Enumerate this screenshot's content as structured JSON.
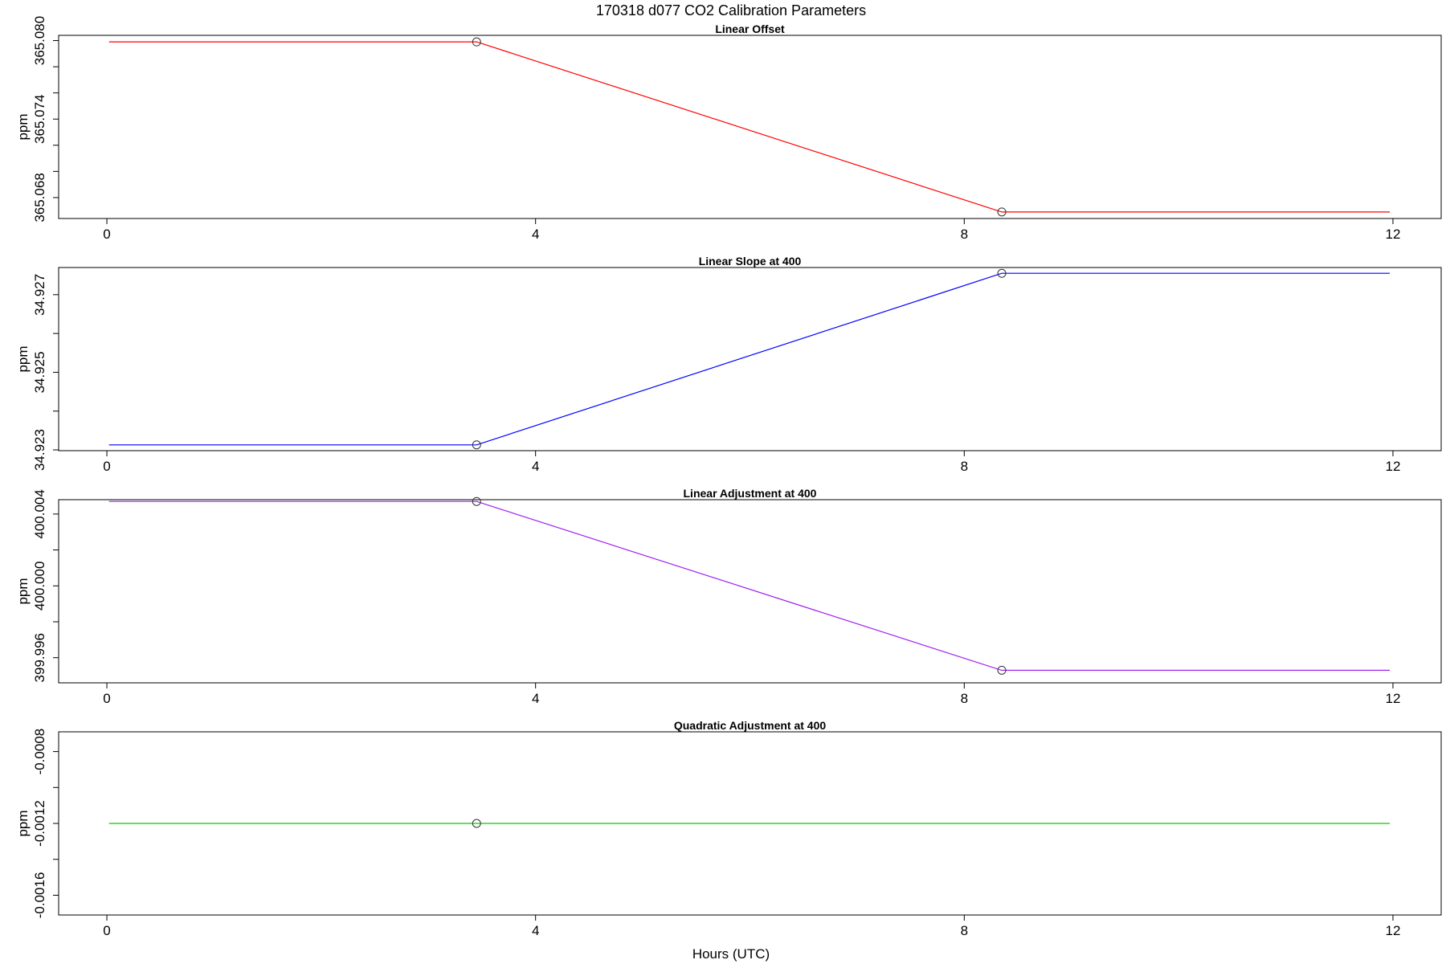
{
  "title": "170318   d077   CO2 Calibration Parameters",
  "xlabel": "Hours (UTC)",
  "chart_data": [
    {
      "type": "line",
      "title": "Linear Offset",
      "ylabel": "ppm",
      "color": "#ff0000",
      "xlim": [
        -0.45,
        12.45
      ],
      "ylim": [
        365.0664,
        365.0804
      ],
      "xticks": [
        0,
        4,
        8,
        12
      ],
      "xtick_labels": [
        "0",
        "4",
        "8",
        "12"
      ],
      "yticks": [
        365.068,
        365.07,
        365.072,
        365.074,
        365.076,
        365.078,
        365.08
      ],
      "ytick_labels": [
        "365.068",
        "",
        "",
        "365.074",
        "",
        "",
        "365.080"
      ],
      "x": [
        0.02,
        3.45,
        8.35,
        11.97
      ],
      "y": [
        365.0799,
        365.0799,
        365.0669,
        365.0669
      ],
      "markers": [
        {
          "x": 3.45,
          "y": 365.0799
        },
        {
          "x": 8.35,
          "y": 365.0669
        }
      ]
    },
    {
      "type": "line",
      "title": "Linear Slope at 400",
      "ylabel": "ppm",
      "color": "#0000ff",
      "xlim": [
        -0.45,
        12.45
      ],
      "ylim": [
        34.92298,
        34.9277
      ],
      "xticks": [
        0,
        4,
        8,
        12
      ],
      "xtick_labels": [
        "0",
        "4",
        "8",
        "12"
      ],
      "yticks": [
        34.923,
        34.924,
        34.925,
        34.926,
        34.927
      ],
      "ytick_labels": [
        "34.923",
        "",
        "34.925",
        "",
        "34.927"
      ],
      "x": [
        0.02,
        3.45,
        8.35,
        11.97
      ],
      "y": [
        34.92313,
        34.92313,
        34.92755,
        34.92755
      ],
      "markers": [
        {
          "x": 3.45,
          "y": 34.92313
        },
        {
          "x": 8.35,
          "y": 34.92755
        }
      ]
    },
    {
      "type": "line",
      "title": "Linear Adjustment at 400",
      "ylabel": "ppm",
      "color": "#a020f0",
      "xlim": [
        -0.45,
        12.45
      ],
      "ylim": [
        399.9946,
        400.0048
      ],
      "xticks": [
        0,
        4,
        8,
        12
      ],
      "xtick_labels": [
        "0",
        "4",
        "8",
        "12"
      ],
      "yticks": [
        399.996,
        399.998,
        400.0,
        400.002,
        400.004
      ],
      "ytick_labels": [
        "399.996",
        "",
        "400.000",
        "",
        "400.004"
      ],
      "x": [
        0.02,
        3.45,
        8.35,
        11.97
      ],
      "y": [
        400.0047,
        400.0047,
        399.9953,
        399.9953
      ],
      "markers": [
        {
          "x": 3.45,
          "y": 400.0047
        },
        {
          "x": 8.35,
          "y": 399.9953
        }
      ]
    },
    {
      "type": "line",
      "title": "Quadratic Adjustment at 400",
      "ylabel": "ppm",
      "color": "#00cd00",
      "xlim": [
        -0.45,
        12.45
      ],
      "ylim": [
        -0.00171,
        -0.00069
      ],
      "xticks": [
        0,
        4,
        8,
        12
      ],
      "xtick_labels": [
        "0",
        "4",
        "8",
        "12"
      ],
      "yticks": [
        -0.0016,
        -0.0014,
        -0.0012,
        -0.001,
        -0.0008
      ],
      "ytick_labels": [
        "-0.0016",
        "",
        "-0.0012",
        "",
        "-0.0008"
      ],
      "x": [
        0.02,
        3.45,
        11.97
      ],
      "y": [
        -0.0012,
        -0.0012,
        -0.0012
      ],
      "markers": [
        {
          "x": 3.45,
          "y": -0.0012
        }
      ]
    }
  ]
}
